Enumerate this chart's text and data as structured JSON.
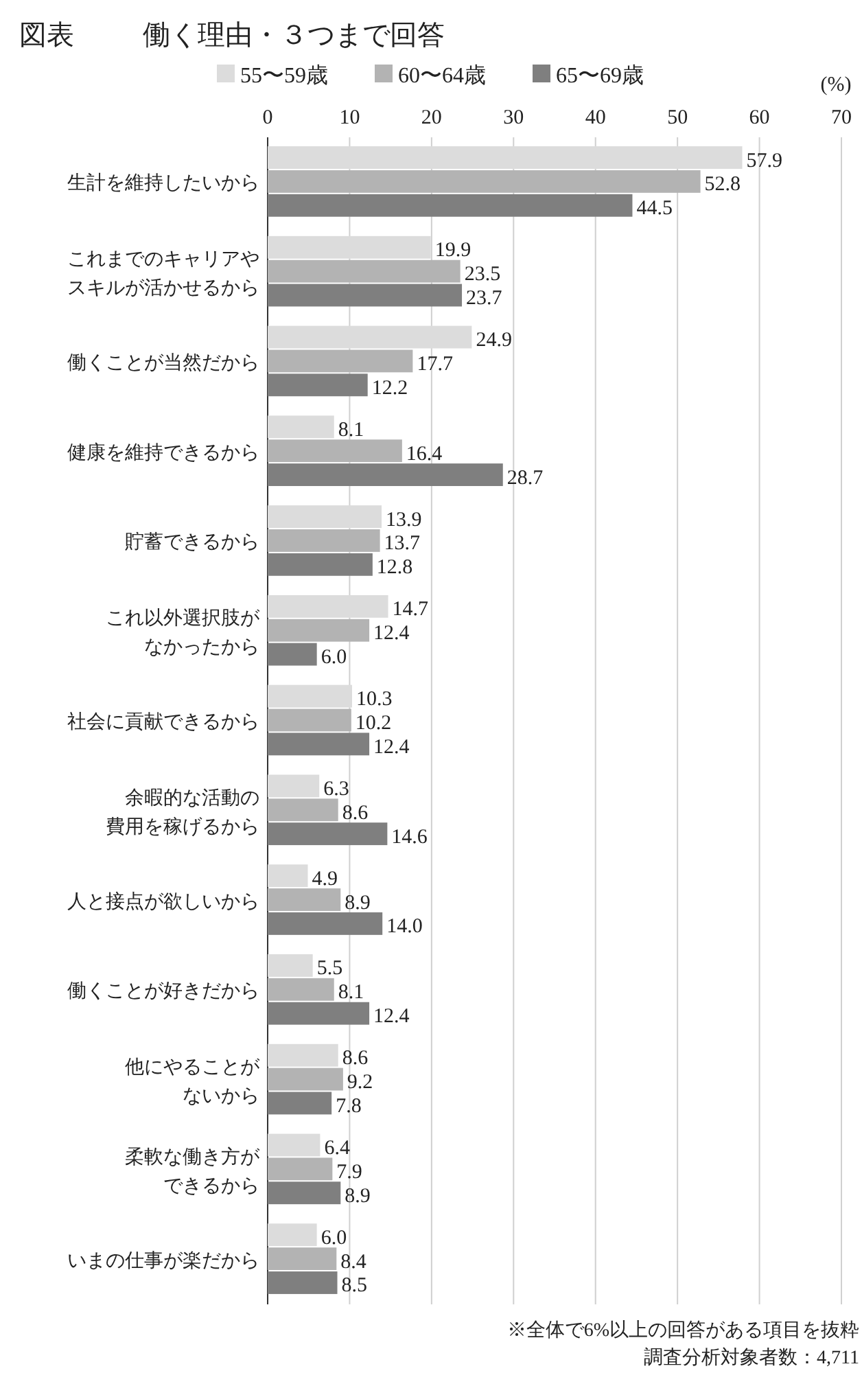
{
  "chart_data": {
    "type": "bar",
    "orientation": "horizontal",
    "title": "図表",
    "subtitle": "働く理由・３つまで回答",
    "xlabel": "(%)",
    "categories": [
      "生計を維持したいから",
      "これまでのキャリアやスキルが活かせるから",
      "働くことが当然だから",
      "健康を維持できるから",
      "貯蓄できるから",
      "これ以外選択肢がなかったから",
      "社会に貢献できるから",
      "余暇的な活動の費用を稼げるから",
      "人と接点が欲しいから",
      "働くことが好きだから",
      "他にやることがないから",
      "柔軟な働き方ができるから",
      "いまの仕事が楽だから"
    ],
    "series": [
      {
        "name": "55〜59歳",
        "color": "#dcdcdc",
        "values": [
          57.9,
          19.9,
          24.9,
          8.1,
          13.9,
          14.7,
          10.3,
          6.3,
          4.9,
          5.5,
          8.6,
          6.4,
          6.0
        ],
        "value_labels": [
          "57.9",
          "19.9",
          "24.9",
          "8.1",
          "13.9",
          "14.7",
          "10.3",
          "6.3",
          "4.9",
          "5.5",
          "8.6",
          "6.4",
          "6.0"
        ]
      },
      {
        "name": "60〜64歳",
        "color": "#b3b3b3",
        "values": [
          52.8,
          23.5,
          17.7,
          16.4,
          13.7,
          12.4,
          10.2,
          8.6,
          8.9,
          8.1,
          9.2,
          7.9,
          8.4
        ],
        "value_labels": [
          "52.8",
          "23.5",
          "17.7",
          "16.4",
          "13.7",
          "12.4",
          "10.2",
          "8.6",
          "8.9",
          "8.1",
          "9.2",
          "7.9",
          "8.4"
        ]
      },
      {
        "name": "65〜69歳",
        "color": "#7f7f7f",
        "values": [
          44.5,
          23.7,
          12.2,
          28.7,
          12.8,
          6.0,
          12.4,
          14.6,
          14.0,
          12.4,
          7.8,
          8.9,
          8.5
        ],
        "value_labels": [
          "44.5",
          "23.7",
          "12.2",
          "28.7",
          "12.8",
          "6.0",
          "12.4",
          "14.6",
          "14.0",
          "12.4",
          "7.8",
          "8.9",
          "8.5"
        ]
      }
    ],
    "xlim": [
      0,
      70
    ],
    "xticks": [
      0,
      10,
      20,
      30,
      40,
      50,
      60,
      70
    ],
    "grid": "x",
    "legend": "top",
    "annotations": [
      "※全体で6%以上の回答がある項目を抜粋",
      "調査分析対象者数：4,711"
    ]
  }
}
